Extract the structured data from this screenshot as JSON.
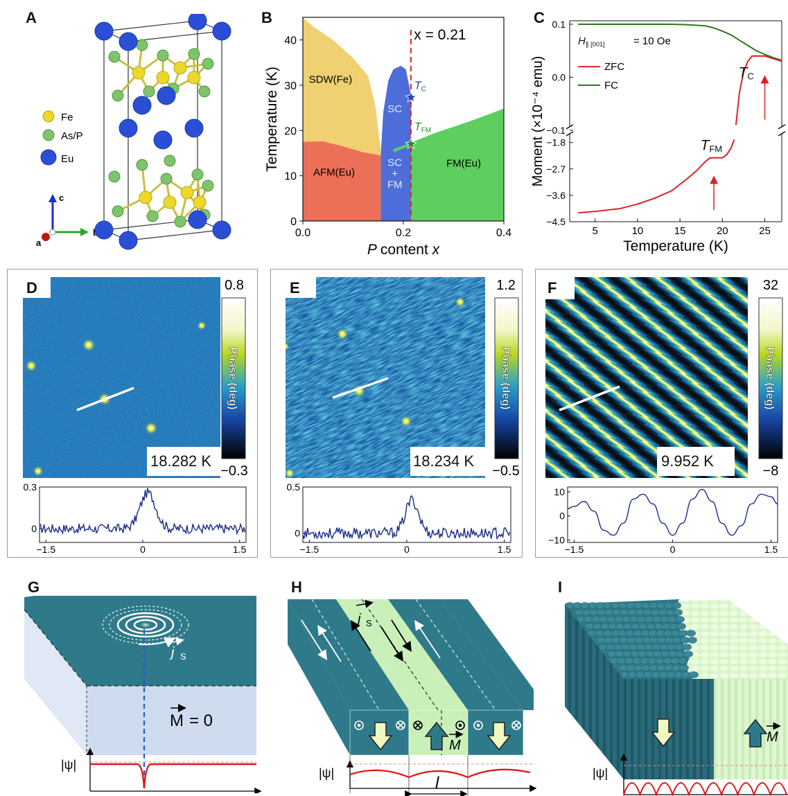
{
  "panels": {
    "A": {
      "label": "A",
      "legend": [
        {
          "name": "Fe",
          "color": "#ecd82a"
        },
        {
          "name": "As/P",
          "color": "#7fc36c"
        },
        {
          "name": "Eu",
          "color": "#2a4fd6"
        }
      ],
      "axes": {
        "c": "c",
        "a": "a",
        "b": "b"
      }
    },
    "B": {
      "label": "B"
    },
    "C": {
      "label": "C"
    },
    "D": {
      "label": "D",
      "temperature": "18.282 K",
      "cbar_max": "0.8",
      "cbar_min": "−0.3",
      "cbar_title": "Phase (deg)"
    },
    "E": {
      "label": "E",
      "temperature": "18.234 K",
      "cbar_max": "1.2",
      "cbar_min": "−0.5",
      "cbar_title": "Phase (deg)"
    },
    "F": {
      "label": "F",
      "temperature": "9.952 K",
      "cbar_max": "32",
      "cbar_min": "−8",
      "cbar_title": "Phase (deg)"
    },
    "G": {
      "label": "G",
      "js": "j",
      "js_sub": "S",
      "M_eq": "= 0",
      "M": "M",
      "psi": "|ψ|"
    },
    "H": {
      "label": "H",
      "js": "j",
      "js_sub": "S",
      "M": "M",
      "psi": "|ψ|",
      "l": "l"
    },
    "I": {
      "label": "I",
      "M": "M",
      "psi": "|ψ|"
    }
  },
  "chart_data": [
    {
      "id": "B",
      "type": "area",
      "xlabel": "P content x",
      "ylabel": "Temperature (K)",
      "xlim": [
        0.0,
        0.4
      ],
      "ylim": [
        0,
        45
      ],
      "x_ticks": [
        "0.0",
        "0.2",
        "0.4"
      ],
      "y_ticks": [
        "0",
        "10",
        "20",
        "30",
        "40"
      ],
      "annotation": "x = 0.21",
      "marker_x": 0.215,
      "regions": [
        {
          "name": "SDW(Fe)",
          "color": "#f0d070"
        },
        {
          "name": "AFM(Eu)",
          "color": "#ec6f58"
        },
        {
          "name": "SC",
          "color": "#4d6ed8"
        },
        {
          "name": "SC + FM",
          "label_lines": [
            "SC",
            "+",
            "FM"
          ],
          "color": "#4d6ed8"
        },
        {
          "name": "FM(Eu)",
          "color": "#5ecf5e"
        }
      ],
      "sdw_boundary": {
        "x": [
          0.0,
          0.02,
          0.06,
          0.1,
          0.13,
          0.145,
          0.15,
          0.155
        ],
        "y": [
          45,
          43,
          40,
          36,
          32,
          25,
          20,
          16
        ]
      },
      "afm_boundary": {
        "x": [
          0.0,
          0.04,
          0.08,
          0.12,
          0.155
        ],
        "y": [
          17.5,
          17.6,
          16.5,
          15.2,
          14.5
        ]
      },
      "sc_dome": {
        "x": [
          0.155,
          0.16,
          0.17,
          0.18,
          0.195,
          0.205,
          0.215
        ],
        "y": [
          14.5,
          24,
          31,
          33.5,
          34.3,
          33.5,
          28
        ]
      },
      "fm_boundary": {
        "x": [
          0.18,
          0.215,
          0.26,
          0.3,
          0.34,
          0.4
        ],
        "y": [
          15.5,
          17,
          19,
          20.5,
          22,
          24.5
        ]
      },
      "points": [
        {
          "label": "T",
          "sub": "C",
          "x": 0.215,
          "y": 27.3,
          "color": "#2a3fb0"
        },
        {
          "label": "T",
          "sub": "FM",
          "x": 0.215,
          "y": 17.0,
          "color": "#2a8a2a"
        }
      ]
    },
    {
      "id": "C",
      "type": "line",
      "xlabel": "Temperature (K)",
      "ylabel": "Moment (×10⁻⁴ emu)",
      "x_ticks": [
        "5",
        "10",
        "15",
        "20",
        "25"
      ],
      "y_ticks_top": [
        "0.1",
        "0.0",
        "−0.1"
      ],
      "y_ticks_bottom": [
        "−1.8",
        "−2.7",
        "−3.6",
        "−4.5"
      ],
      "field_label": "H",
      "field_sub": "∥ [001]",
      "field_value": "= 10 Oe",
      "series": [
        {
          "name": "ZFC",
          "color": "#e02020",
          "x": [
            3,
            5,
            8,
            10,
            12,
            14,
            16,
            17,
            18,
            18.5,
            19,
            20,
            20.5,
            21,
            21.4
          ],
          "y": [
            -4.2,
            -4.15,
            -4.05,
            -3.9,
            -3.7,
            -3.45,
            -3.0,
            -2.75,
            -2.45,
            -2.33,
            -2.32,
            -2.32,
            -2.22,
            -2.0,
            -1.7
          ],
          "x_top": [
            21.6,
            22,
            22.5,
            23,
            23.5,
            24,
            25,
            26,
            27
          ],
          "y_top": [
            -0.09,
            -0.03,
            0.01,
            0.03,
            0.04,
            0.04,
            0.04,
            0.035,
            0.03
          ]
        },
        {
          "name": "FC",
          "color": "#2a7a1a",
          "x": [
            3,
            5,
            8,
            10,
            12,
            14,
            16,
            18,
            19,
            20,
            21,
            22,
            23,
            24,
            25,
            26,
            27
          ],
          "y": [
            0.1,
            0.1,
            0.1,
            0.1,
            0.1,
            0.1,
            0.099,
            0.097,
            0.093,
            0.087,
            0.08,
            0.07,
            0.06,
            0.05,
            0.043,
            0.037,
            0.032
          ]
        }
      ],
      "annotations": [
        {
          "label": "T",
          "sub": "C"
        },
        {
          "label": "T",
          "sub": "FM"
        }
      ]
    },
    {
      "id": "D-profile",
      "type": "line",
      "ylim": [
        -0.1,
        0.3
      ],
      "y_ticks": [
        "0.3",
        "0"
      ],
      "x_ticks": [
        "−1.5",
        "0",
        "1.5"
      ],
      "peak": 0.26,
      "noise": 0.035,
      "width": 0.12
    },
    {
      "id": "E-profile",
      "type": "line",
      "ylim": [
        -0.1,
        0.5
      ],
      "y_ticks": [
        "0.5",
        "0"
      ],
      "x_ticks": [
        "−1.5",
        "0",
        "1.5"
      ],
      "peak": 0.36,
      "noise": 0.06,
      "width": 0.1
    },
    {
      "id": "F-profile",
      "type": "line",
      "ylim": [
        -11,
        12
      ],
      "y_ticks": [
        "10",
        "0",
        "−10"
      ],
      "x_ticks": [
        "−1.5",
        "0",
        "1.5"
      ],
      "x": [
        -1.6,
        -1.5,
        -1.35,
        -1.2,
        -1.05,
        -0.9,
        -0.75,
        -0.6,
        -0.45,
        -0.3,
        -0.15,
        0,
        0.15,
        0.3,
        0.45,
        0.6,
        0.75,
        0.9,
        1.05,
        1.2,
        1.35,
        1.5,
        1.6
      ],
      "y": [
        3,
        4,
        6,
        2,
        -6,
        -8,
        -3,
        7,
        9,
        5,
        -3,
        -8,
        -3,
        7,
        11,
        6,
        -3,
        -8,
        -4,
        5,
        9,
        8,
        5
      ]
    }
  ]
}
